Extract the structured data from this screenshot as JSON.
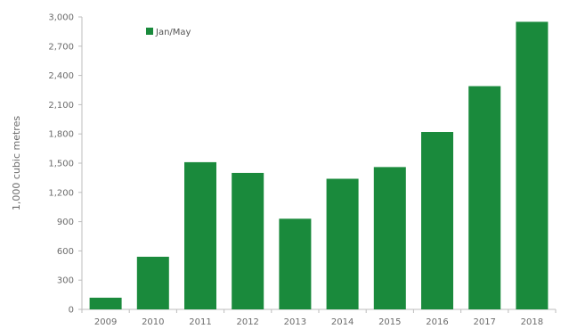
{
  "chart_data": {
    "type": "bar",
    "categories": [
      "2009",
      "2010",
      "2011",
      "2012",
      "2013",
      "2014",
      "2015",
      "2016",
      "2017",
      "2018"
    ],
    "series": [
      {
        "name": "Jan/May",
        "values": [
          120,
          540,
          1510,
          1400,
          930,
          1340,
          1460,
          1820,
          2290,
          2950
        ]
      }
    ],
    "ylabel": "1,000 cubic metres",
    "xlabel": "",
    "ylim": [
      0,
      3000
    ],
    "yticks": [
      0,
      300,
      600,
      900,
      1200,
      1500,
      1800,
      2100,
      2400,
      2700,
      3000
    ],
    "ytick_labels": [
      "0",
      "300",
      "600",
      "900",
      "1,200",
      "1,500",
      "1,800",
      "2,100",
      "2,400",
      "2,700",
      "3,000"
    ],
    "legend": {
      "label": "Jan/May",
      "placement": "top-left"
    },
    "colors": {
      "bar": "#1a8a3c",
      "axis": "#bdbdbd",
      "text": "#6b6b6b"
    },
    "grid": false
  }
}
